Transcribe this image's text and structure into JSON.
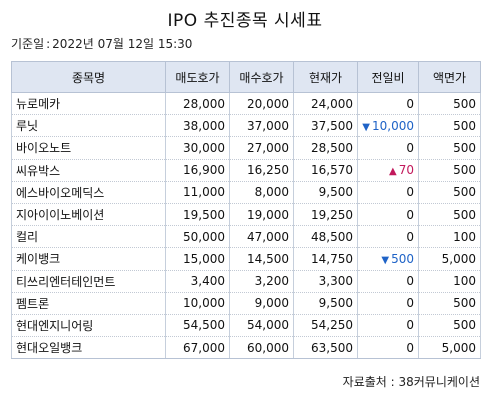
{
  "title": "IPO 추진종목 시세표",
  "date": {
    "label": "기준일",
    "separator": ":",
    "value": "2022년 07월 12일 15:30"
  },
  "table": {
    "headers": [
      "종목명",
      "매도호가",
      "매수호가",
      "현재가",
      "전일비",
      "액면가"
    ],
    "rows": [
      {
        "name": "뉴로메카",
        "ask": "28,000",
        "bid": "20,000",
        "price": "24,000",
        "change": "0",
        "dir": "none",
        "face": "500"
      },
      {
        "name": "루닛",
        "ask": "38,000",
        "bid": "37,000",
        "price": "37,500",
        "change": "10,000",
        "dir": "down",
        "face": "500"
      },
      {
        "name": "바이오노트",
        "ask": "30,000",
        "bid": "27,000",
        "price": "28,500",
        "change": "0",
        "dir": "none",
        "face": "500"
      },
      {
        "name": "씨유박스",
        "ask": "16,900",
        "bid": "16,250",
        "price": "16,570",
        "change": "70",
        "dir": "up",
        "face": "500"
      },
      {
        "name": "에스바이오메딕스",
        "ask": "11,000",
        "bid": "8,000",
        "price": "9,500",
        "change": "0",
        "dir": "none",
        "face": "500"
      },
      {
        "name": "지아이이노베이션",
        "ask": "19,500",
        "bid": "19,000",
        "price": "19,250",
        "change": "0",
        "dir": "none",
        "face": "500"
      },
      {
        "name": "컬리",
        "ask": "50,000",
        "bid": "47,000",
        "price": "48,500",
        "change": "0",
        "dir": "none",
        "face": "100"
      },
      {
        "name": "케이뱅크",
        "ask": "15,000",
        "bid": "14,500",
        "price": "14,750",
        "change": "500",
        "dir": "down",
        "face": "5,000"
      },
      {
        "name": "티쓰리엔터테인먼트",
        "ask": "3,400",
        "bid": "3,200",
        "price": "3,300",
        "change": "0",
        "dir": "none",
        "face": "100"
      },
      {
        "name": "펨트론",
        "ask": "10,000",
        "bid": "9,000",
        "price": "9,500",
        "change": "0",
        "dir": "none",
        "face": "500"
      },
      {
        "name": "현대엔지니어링",
        "ask": "54,500",
        "bid": "54,000",
        "price": "54,250",
        "change": "0",
        "dir": "none",
        "face": "500"
      },
      {
        "name": "현대오일뱅크",
        "ask": "67,000",
        "bid": "60,000",
        "price": "63,500",
        "change": "0",
        "dir": "none",
        "face": "5,000"
      }
    ]
  },
  "arrows": {
    "up": "▲",
    "down": "▼"
  },
  "colors": {
    "header_bg": "#dfe6f2",
    "up": "#c2185b",
    "down": "#1f63c7"
  },
  "icons": {
    "up": "triangle-up-icon",
    "down": "triangle-down-icon"
  },
  "source": "자료출처 : 38커뮤니케이션"
}
